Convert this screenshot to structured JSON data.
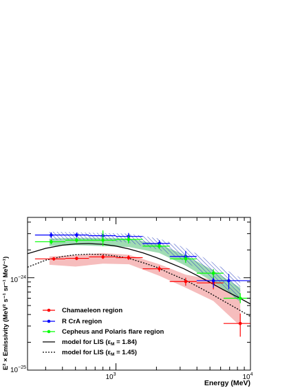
{
  "chart_data": {
    "type": "scatter",
    "xlabel": "Energy (MeV)",
    "ylabel": "E² × Emissivity (MeV² s⁻¹ sr⁻¹ MeV⁻¹)",
    "x_scale": "log",
    "y_scale": "log",
    "xlim": [
      220,
      10000
    ],
    "ylim": [
      1e-25,
      4.5e-24
    ],
    "x_ticks": [
      {
        "value": 1000,
        "base": "10",
        "exp": "3"
      },
      {
        "value": 10000,
        "base": "10",
        "exp": "4"
      }
    ],
    "y_ticks": [
      {
        "value": 1e-25,
        "base": "10",
        "exp": "−25"
      },
      {
        "value": 1e-24,
        "base": "10",
        "exp": "−24"
      }
    ],
    "legend": [
      {
        "label": "Chamaeleon region",
        "color": "#ff0000",
        "style": "marker"
      },
      {
        "label": "R CrA region",
        "color": "#0000ff",
        "style": "marker"
      },
      {
        "label": "Cepheus and Polaris flare region",
        "color": "#00ff00",
        "style": "marker"
      },
      {
        "label": "model for LIS (εM = 1.84)",
        "color": "#000000",
        "style": "solid",
        "text_pre": "model for LIS (",
        "eps": "ε",
        "eps_sub": "M",
        "text_post": " = 1.84)"
      },
      {
        "label": "model for LIS (εM = 1.45)",
        "color": "#000000",
        "style": "dashed",
        "text_pre": "model for LIS (",
        "eps": "ε",
        "eps_sub": "M",
        "text_post": " = 1.45)"
      }
    ],
    "legend_position": "bottom-left",
    "series": [
      {
        "name": "Chamaeleon region",
        "color": "#ff0000",
        "band_color": "#f5b2b2",
        "points": [
          {
            "x": 345,
            "xlo": 250,
            "xhi": 420,
            "y": 1.6e-24,
            "ylo": 1.53e-24,
            "yhi": 1.67e-24
          },
          {
            "x": 510,
            "xlo": 420,
            "xhi": 630,
            "y": 1.62e-24,
            "ylo": 1.55e-24,
            "yhi": 1.69e-24
          },
          {
            "x": 800,
            "xlo": 630,
            "xhi": 1000,
            "y": 1.68e-24,
            "ylo": 1.6e-24,
            "yhi": 1.76e-24
          },
          {
            "x": 1240,
            "xlo": 1000,
            "xhi": 1580,
            "y": 1.65e-24,
            "ylo": 1.56e-24,
            "yhi": 1.75e-24
          },
          {
            "x": 2100,
            "xlo": 1580,
            "xhi": 2510,
            "y": 1.25e-24,
            "ylo": 1.16e-24,
            "yhi": 1.34e-24
          },
          {
            "x": 3300,
            "xlo": 2510,
            "xhi": 3980,
            "y": 9.1e-25,
            "ylo": 8.2e-25,
            "yhi": 1e-24
          },
          {
            "x": 5300,
            "xlo": 3980,
            "xhi": 6310,
            "y": 8.8e-25,
            "ylo": 7.5e-25,
            "yhi": 1.02e-24
          },
          {
            "x": 8400,
            "xlo": 6310,
            "xhi": 10000,
            "y": 3.2e-25,
            "ylo": 2.3e-25,
            "yhi": 4.1e-25
          }
        ],
        "band": [
          {
            "x": 320,
            "lo": 1.38e-24,
            "hi": 1.7e-24
          },
          {
            "x": 500,
            "lo": 1.32e-24,
            "hi": 1.75e-24
          },
          {
            "x": 800,
            "lo": 1.42e-24,
            "hi": 1.85e-24
          },
          {
            "x": 1250,
            "lo": 1.4e-24,
            "hi": 1.77e-24
          },
          {
            "x": 2100,
            "lo": 1.05e-24,
            "hi": 1.4e-24
          },
          {
            "x": 3300,
            "lo": 7.8e-25,
            "hi": 1.08e-24
          },
          {
            "x": 5300,
            "lo": 5.6e-25,
            "hi": 9.5e-25
          },
          {
            "x": 8400,
            "lo": 3e-25,
            "hi": 7.2e-25
          }
        ]
      },
      {
        "name": "R CrA region",
        "color": "#0000ff",
        "band_color": "#3a4fc4",
        "points": [
          {
            "x": 330,
            "xlo": 250,
            "xhi": 420,
            "y": 2.9e-24,
            "ylo": 2.7e-24,
            "yhi": 3.1e-24
          },
          {
            "x": 510,
            "xlo": 420,
            "xhi": 630,
            "y": 2.9e-24,
            "ylo": 2.72e-24,
            "yhi": 3.08e-24
          },
          {
            "x": 800,
            "xlo": 630,
            "xhi": 1000,
            "y": 2.85e-24,
            "ylo": 2.6e-24,
            "yhi": 3.1e-24
          },
          {
            "x": 1240,
            "xlo": 1000,
            "xhi": 1580,
            "y": 2.8e-24,
            "ylo": 2.45e-24,
            "yhi": 3.05e-24
          },
          {
            "x": 2100,
            "xlo": 1580,
            "xhi": 2510,
            "y": 2.35e-24,
            "ylo": 2.15e-24,
            "yhi": 2.55e-24
          },
          {
            "x": 3300,
            "xlo": 2510,
            "xhi": 3980,
            "y": 1.7e-24,
            "ylo": 1.45e-24,
            "yhi": 1.95e-24
          },
          {
            "x": 5300,
            "xlo": 3980,
            "xhi": 6310,
            "y": 9.3e-25,
            "ylo": 7.8e-25,
            "yhi": 1.08e-24
          },
          {
            "x": 6900,
            "xlo": 6310,
            "xhi": 10000,
            "y": 9.3e-25,
            "ylo": 7.5e-25,
            "yhi": 1.1e-24
          }
        ],
        "band": [
          {
            "x": 320,
            "lo": 2.55e-24,
            "hi": 3.15e-24
          },
          {
            "x": 500,
            "lo": 2.6e-24,
            "hi": 3.1e-24
          },
          {
            "x": 800,
            "lo": 2.55e-24,
            "hi": 3.05e-24
          },
          {
            "x": 1250,
            "lo": 2.4e-24,
            "hi": 3e-24
          },
          {
            "x": 2100,
            "lo": 2e-24,
            "hi": 2.65e-24
          },
          {
            "x": 3300,
            "lo": 1.5e-24,
            "hi": 2.1e-24
          },
          {
            "x": 5300,
            "lo": 9.5e-25,
            "hi": 1.45e-24
          },
          {
            "x": 8400,
            "lo": 5.5e-25,
            "hi": 1e-24
          }
        ]
      },
      {
        "name": "Cepheus and Polaris flare region",
        "color": "#00ff00",
        "band_color": "#8fd6a6",
        "points": [
          {
            "x": 330,
            "xlo": 250,
            "xhi": 420,
            "y": 2.45e-24,
            "ylo": 2.3e-24,
            "yhi": 2.6e-24
          },
          {
            "x": 510,
            "xlo": 420,
            "xhi": 630,
            "y": 2.55e-24,
            "ylo": 2.4e-24,
            "yhi": 2.7e-24
          },
          {
            "x": 800,
            "xlo": 630,
            "xhi": 1000,
            "y": 2.55e-24,
            "ylo": 2.2e-24,
            "yhi": 3.25e-24
          },
          {
            "x": 1240,
            "xlo": 1000,
            "xhi": 1580,
            "y": 2.6e-24,
            "ylo": 2.35e-24,
            "yhi": 2.85e-24
          },
          {
            "x": 2100,
            "xlo": 1580,
            "xhi": 2510,
            "y": 2.2e-24,
            "ylo": 2.05e-24,
            "yhi": 2.35e-24
          },
          {
            "x": 3300,
            "xlo": 2510,
            "xhi": 3980,
            "y": 1.6e-24,
            "ylo": 1.45e-24,
            "yhi": 1.75e-24
          },
          {
            "x": 5300,
            "xlo": 3980,
            "xhi": 6310,
            "y": 1.12e-24,
            "ylo": 1e-24,
            "yhi": 1.24e-24
          },
          {
            "x": 8400,
            "xlo": 6310,
            "xhi": 10000,
            "y": 6e-25,
            "ylo": 5.3e-25,
            "yhi": 6.8e-25
          }
        ],
        "band": [
          {
            "x": 320,
            "lo": 2.2e-24,
            "hi": 2.65e-24
          },
          {
            "x": 500,
            "lo": 2.25e-24,
            "hi": 2.7e-24
          },
          {
            "x": 800,
            "lo": 2.2e-24,
            "hi": 2.7e-24
          },
          {
            "x": 1250,
            "lo": 2.15e-24,
            "hi": 2.65e-24
          },
          {
            "x": 2100,
            "lo": 1.85e-24,
            "hi": 2.3e-24
          },
          {
            "x": 3300,
            "lo": 1.35e-24,
            "hi": 1.75e-24
          },
          {
            "x": 5300,
            "lo": 9e-25,
            "hi": 1.2e-24
          },
          {
            "x": 8400,
            "lo": 5.5e-25,
            "hi": 7.8e-25
          }
        ]
      }
    ],
    "models": [
      {
        "name": "model for LIS (εM = 1.84)",
        "style": "solid",
        "points": [
          [
            220,
            1.82e-24
          ],
          [
            300,
            2.08e-24
          ],
          [
            400,
            2.25e-24
          ],
          [
            500,
            2.32e-24
          ],
          [
            630,
            2.34e-24
          ],
          [
            800,
            2.3e-24
          ],
          [
            1000,
            2.2e-24
          ],
          [
            1250,
            2.05e-24
          ],
          [
            1600,
            1.85e-24
          ],
          [
            2000,
            1.65e-24
          ],
          [
            2500,
            1.45e-24
          ],
          [
            3200,
            1.25e-24
          ],
          [
            4000,
            1.06e-24
          ],
          [
            5000,
            8.9e-25
          ],
          [
            6300,
            7.4e-25
          ],
          [
            8000,
            6.2e-25
          ],
          [
            10000,
            5.2e-25
          ]
        ]
      },
      {
        "name": "model for LIS (εM = 1.45)",
        "style": "dashed",
        "points": [
          [
            220,
            1.3e-24
          ],
          [
            300,
            1.55e-24
          ],
          [
            400,
            1.7e-24
          ],
          [
            500,
            1.77e-24
          ],
          [
            630,
            1.8e-24
          ],
          [
            800,
            1.78e-24
          ],
          [
            1000,
            1.72e-24
          ],
          [
            1250,
            1.62e-24
          ],
          [
            1600,
            1.45e-24
          ],
          [
            2000,
            1.3e-24
          ],
          [
            2500,
            1.12e-24
          ],
          [
            3200,
            9.6e-25
          ],
          [
            4000,
            8.1e-25
          ],
          [
            5000,
            6.8e-25
          ],
          [
            6300,
            5.6e-25
          ],
          [
            8000,
            4.6e-25
          ],
          [
            10000,
            3.8e-25
          ]
        ]
      }
    ]
  }
}
